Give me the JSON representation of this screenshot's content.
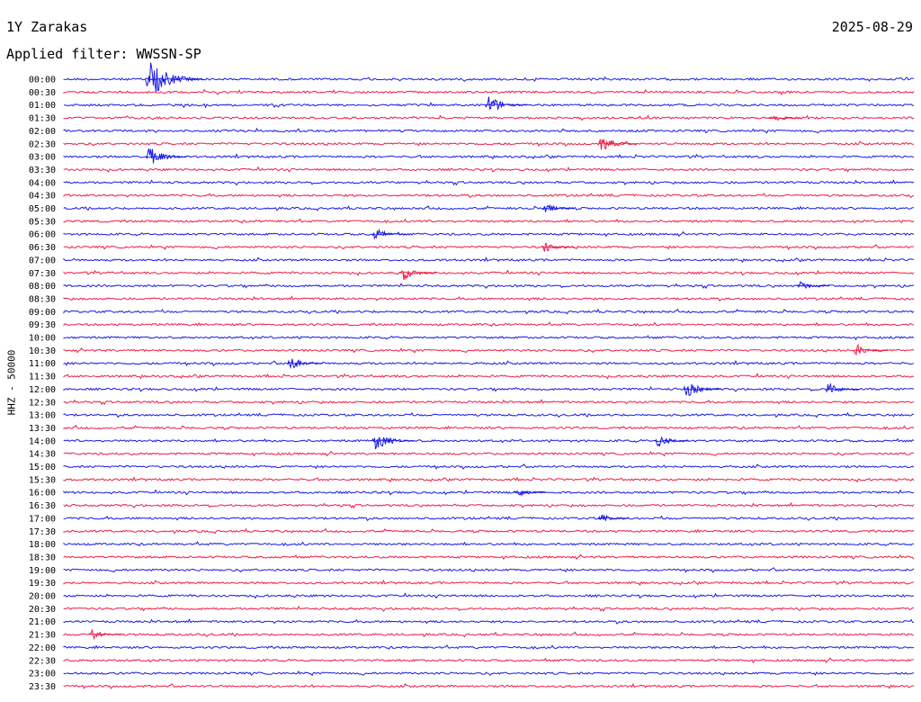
{
  "header": {
    "station": "1Y Zarakas",
    "date": "2025-08-29",
    "filter_label": "Applied filter: WWSSN-SP"
  },
  "axis": {
    "y_label": "HHZ - 50000"
  },
  "colors": {
    "trace_a": "#1a1ae6",
    "trace_b": "#ee1c4a",
    "background": "#ffffff"
  },
  "chart_data": {
    "type": "line",
    "title": "1Y Zarakas",
    "subtitle": "Applied filter: WWSSN-SP",
    "date": "2025-08-29",
    "ylabel": "HHZ - 50000",
    "row_labels": [
      "00:00",
      "00:30",
      "01:00",
      "01:30",
      "02:00",
      "02:30",
      "03:00",
      "03:30",
      "04:00",
      "04:30",
      "05:00",
      "05:30",
      "06:00",
      "06:30",
      "07:00",
      "07:30",
      "08:00",
      "08:30",
      "09:00",
      "09:30",
      "10:00",
      "10:30",
      "11:00",
      "11:30",
      "12:00",
      "12:30",
      "13:00",
      "13:30",
      "14:00",
      "14:30",
      "15:00",
      "15:30",
      "16:00",
      "16:30",
      "17:00",
      "17:30",
      "18:00",
      "18:30",
      "19:00",
      "19:30",
      "20:00",
      "20:30",
      "21:00",
      "21:30",
      "22:00",
      "22:30",
      "23:00",
      "23:30"
    ],
    "events": [
      {
        "row": "00:00",
        "minute": 3,
        "amplitude": 1.0
      },
      {
        "row": "01:00",
        "minute": 15,
        "amplitude": 0.55
      },
      {
        "row": "01:30",
        "minute": 25,
        "amplitude": 0.3
      },
      {
        "row": "02:30",
        "minute": 19,
        "amplitude": 0.45
      },
      {
        "row": "03:00",
        "minute": 3,
        "amplitude": 0.55
      },
      {
        "row": "05:00",
        "minute": 17,
        "amplitude": 0.3
      },
      {
        "row": "06:00",
        "minute": 11,
        "amplitude": 0.35
      },
      {
        "row": "06:30",
        "minute": 17,
        "amplitude": 0.3
      },
      {
        "row": "07:30",
        "minute": 12,
        "amplitude": 0.4
      },
      {
        "row": "08:00",
        "minute": 26,
        "amplitude": 0.3
      },
      {
        "row": "10:30",
        "minute": 28,
        "amplitude": 0.35
      },
      {
        "row": "11:00",
        "minute": 8,
        "amplitude": 0.4
      },
      {
        "row": "12:00",
        "minute": 22,
        "amplitude": 0.45
      },
      {
        "row": "12:00",
        "minute": 27,
        "amplitude": 0.35
      },
      {
        "row": "14:00",
        "minute": 11,
        "amplitude": 0.55
      },
      {
        "row": "14:00",
        "minute": 21,
        "amplitude": 0.35
      },
      {
        "row": "16:00",
        "minute": 16,
        "amplitude": 0.3
      },
      {
        "row": "17:00",
        "minute": 19,
        "amplitude": 0.25
      },
      {
        "row": "21:30",
        "minute": 1,
        "amplitude": 0.3
      }
    ]
  }
}
